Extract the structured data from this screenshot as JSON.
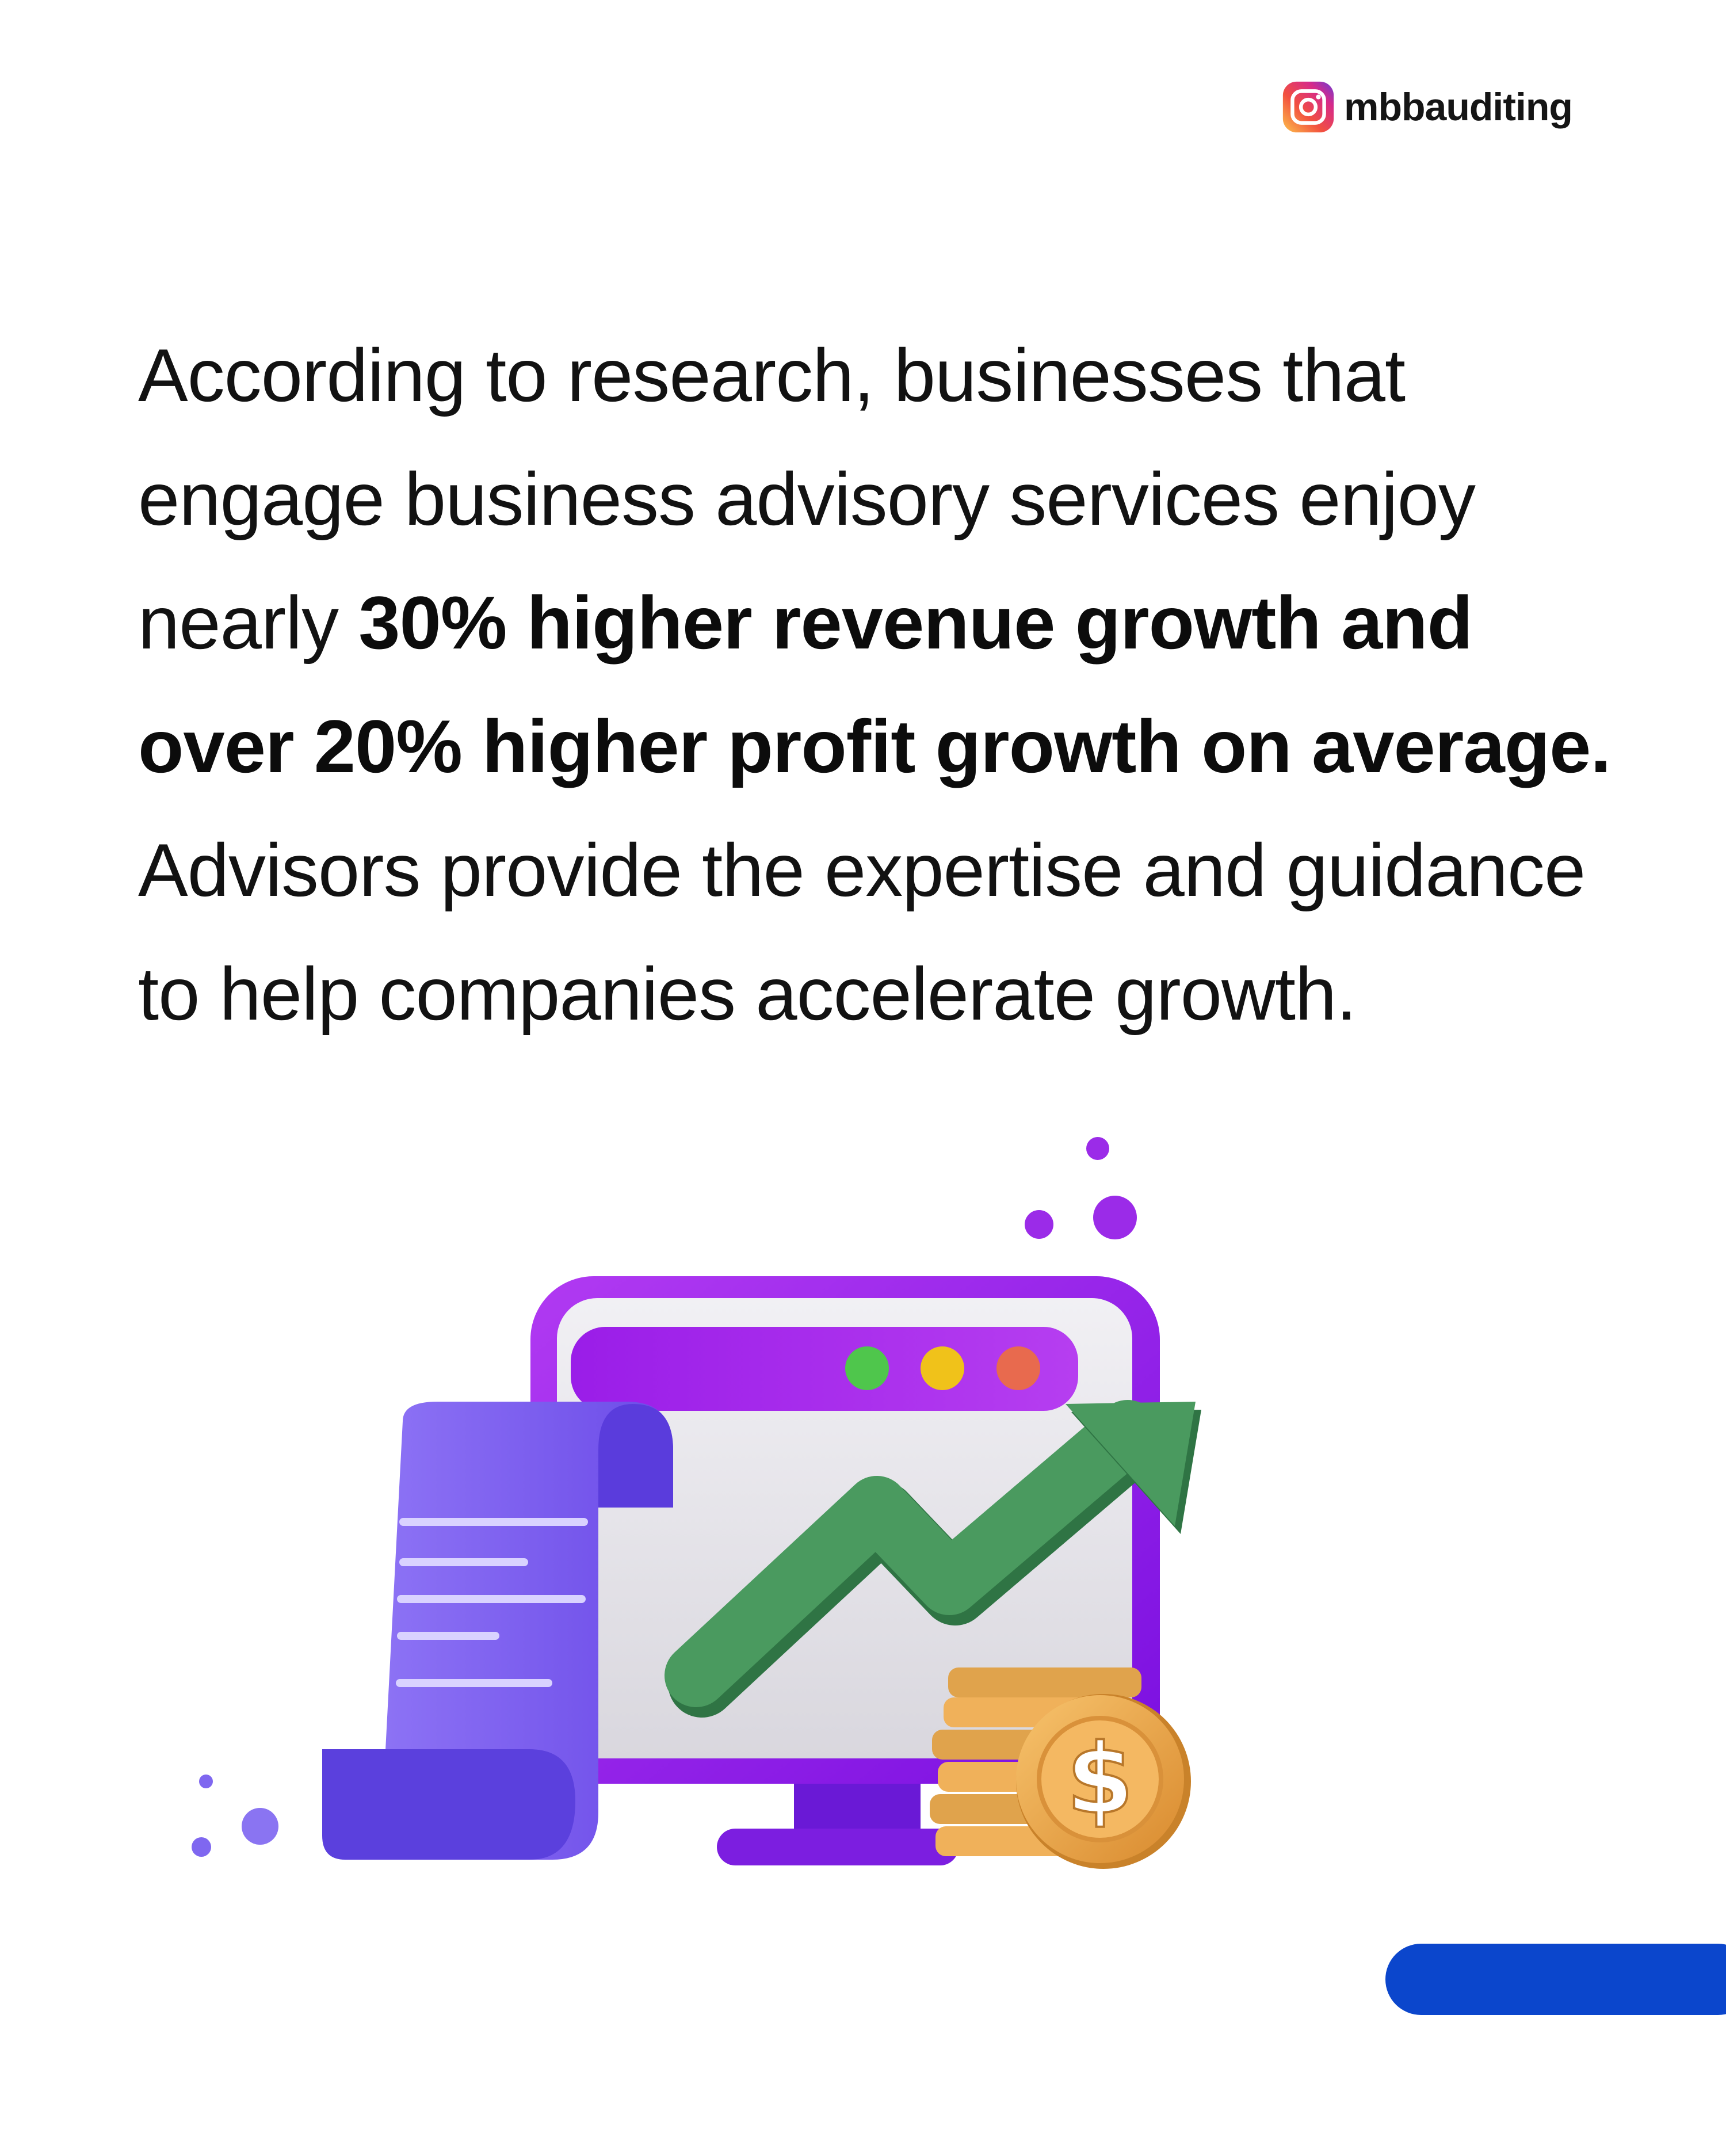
{
  "header": {
    "handle": "mbbauditing",
    "icon": "instagram-icon"
  },
  "body": {
    "intro": "According to research, businesses that engage business advisory services enjoy nearly ",
    "highlight": "30% higher revenue growth and over 20% higher profit growth on average.",
    "outro": "Advisors provide the expertise and guidance to help companies accelerate growth."
  },
  "illustration": {
    "subject": "monitor-with-growth-chart",
    "elements": [
      "receipt-icon",
      "monitor-icon",
      "growth-arrow-icon",
      "coin-stack-icon",
      "dollar-coin-icon"
    ],
    "currency_symbol": "$",
    "colors": {
      "purple": "#8b1be6",
      "arrow_green": "#3f8f57",
      "receipt": "#7b61f0",
      "coin": "#f0b15a",
      "window_dot_green": "#4fc64c",
      "window_dot_yellow": "#f0c21a",
      "window_dot_red": "#e86a4e"
    }
  },
  "footer": {
    "indicator_color": "#0b46cc"
  }
}
